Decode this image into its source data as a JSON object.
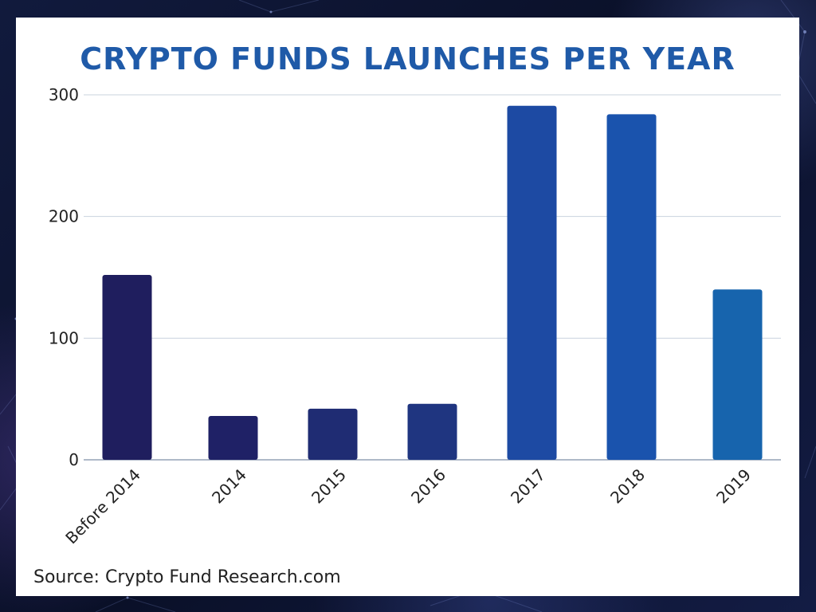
{
  "colors": {
    "background": "#0d1430",
    "card": "#ffffff",
    "title": "#1f5aa8",
    "grid": "#c9d3de",
    "axis": "#7f8fa6"
  },
  "source_text": "Source: Crypto Fund Research.com",
  "chart_data": {
    "type": "bar",
    "title": "CRYPTO FUNDS LAUNCHES PER YEAR",
    "xlabel": "",
    "ylabel": "",
    "categories": [
      "Before 2014",
      "2014",
      "2015",
      "2016",
      "2017",
      "2018",
      "2019"
    ],
    "values": [
      152,
      36,
      42,
      46,
      291,
      284,
      140
    ],
    "bar_colors": [
      "#1f1e5e",
      "#1f2166",
      "#1f2c73",
      "#1f3580",
      "#1d4aa3",
      "#1a53ad",
      "#1764ad"
    ],
    "ylim": [
      0,
      300
    ],
    "yticks": [
      0,
      100,
      200,
      300
    ],
    "ytick_labels": [
      "0",
      "100",
      "200",
      "300"
    ],
    "grid": true,
    "legend": "none"
  }
}
